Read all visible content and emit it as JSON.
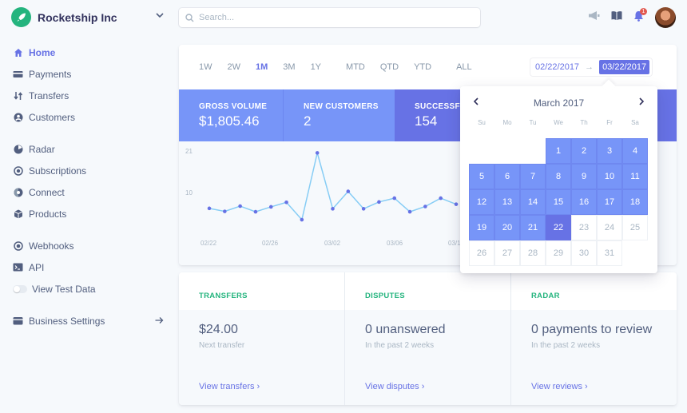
{
  "brand": {
    "name": "Rocketship Inc"
  },
  "search": {
    "placeholder": "Search..."
  },
  "notifications": {
    "count": "1"
  },
  "sidebar": {
    "items": [
      {
        "label": "Home",
        "icon": "home-icon",
        "active": true
      },
      {
        "label": "Payments",
        "icon": "payments-icon"
      },
      {
        "label": "Transfers",
        "icon": "transfers-icon"
      },
      {
        "label": "Customers",
        "icon": "customers-icon"
      },
      {
        "label": "Radar",
        "icon": "radar-icon"
      },
      {
        "label": "Subscriptions",
        "icon": "subscriptions-icon"
      },
      {
        "label": "Connect",
        "icon": "connect-icon"
      },
      {
        "label": "Products",
        "icon": "products-icon"
      },
      {
        "label": "Webhooks",
        "icon": "webhooks-icon"
      },
      {
        "label": "API",
        "icon": "api-icon"
      },
      {
        "label": "View Test Data",
        "icon": "toggle"
      },
      {
        "label": "Business Settings",
        "icon": "settings-icon"
      }
    ]
  },
  "ranges": [
    "1W",
    "2W",
    "1M",
    "3M",
    "1Y",
    "MTD",
    "QTD",
    "YTD",
    "ALL"
  ],
  "selected_range": "1M",
  "date_range": {
    "start": "02/22/2017",
    "end": "03/22/2017",
    "arrow": "→"
  },
  "metrics": [
    {
      "label": "GROSS VOLUME",
      "value": "$1,805.46"
    },
    {
      "label": "NEW CUSTOMERS",
      "value": "2"
    },
    {
      "label": "SUCCESSFUL",
      "value": "154"
    }
  ],
  "chart_data": {
    "type": "line",
    "x": [
      "02/22",
      "02/23",
      "02/24",
      "02/25",
      "02/26",
      "02/27",
      "02/28",
      "03/01",
      "03/02",
      "03/03",
      "03/04",
      "03/05",
      "03/06",
      "03/07",
      "03/08",
      "03/09",
      "03/10"
    ],
    "values": [
      5.8,
      5.0,
      6.4,
      4.9,
      6.2,
      7.4,
      2.8,
      20.5,
      5.7,
      10.3,
      5.7,
      7.5,
      8.5,
      4.9,
      6.3,
      8.5,
      6.9
    ],
    "y_ticks": [
      "21",
      "10"
    ],
    "x_ticks": [
      "02/22",
      "02/26",
      "03/02",
      "03/06",
      "03/1"
    ],
    "color": "#87cdf5",
    "point_color": "#6772e5"
  },
  "calendar": {
    "month": "March 2017",
    "dow": [
      "Su",
      "Mo",
      "Tu",
      "We",
      "Th",
      "Fr",
      "Sa"
    ],
    "days": [
      {
        "d": "1",
        "c": 3,
        "r": 0,
        "s": "in"
      },
      {
        "d": "2",
        "c": 4,
        "r": 0,
        "s": "in"
      },
      {
        "d": "3",
        "c": 5,
        "r": 0,
        "s": "in"
      },
      {
        "d": "4",
        "c": 6,
        "r": 0,
        "s": "in"
      },
      {
        "d": "5",
        "c": 0,
        "r": 1,
        "s": "in"
      },
      {
        "d": "6",
        "c": 1,
        "r": 1,
        "s": "in"
      },
      {
        "d": "7",
        "c": 2,
        "r": 1,
        "s": "in"
      },
      {
        "d": "8",
        "c": 3,
        "r": 1,
        "s": "in"
      },
      {
        "d": "9",
        "c": 4,
        "r": 1,
        "s": "in"
      },
      {
        "d": "10",
        "c": 5,
        "r": 1,
        "s": "in"
      },
      {
        "d": "11",
        "c": 6,
        "r": 1,
        "s": "in"
      },
      {
        "d": "12",
        "c": 0,
        "r": 2,
        "s": "in"
      },
      {
        "d": "13",
        "c": 1,
        "r": 2,
        "s": "in"
      },
      {
        "d": "14",
        "c": 2,
        "r": 2,
        "s": "in"
      },
      {
        "d": "15",
        "c": 3,
        "r": 2,
        "s": "in"
      },
      {
        "d": "16",
        "c": 4,
        "r": 2,
        "s": "in"
      },
      {
        "d": "17",
        "c": 5,
        "r": 2,
        "s": "in"
      },
      {
        "d": "18",
        "c": 6,
        "r": 2,
        "s": "in"
      },
      {
        "d": "19",
        "c": 0,
        "r": 3,
        "s": "in"
      },
      {
        "d": "20",
        "c": 1,
        "r": 3,
        "s": "in"
      },
      {
        "d": "21",
        "c": 2,
        "r": 3,
        "s": "in"
      },
      {
        "d": "22",
        "c": 3,
        "r": 3,
        "s": "today"
      },
      {
        "d": "23",
        "c": 4,
        "r": 3,
        "s": "out"
      },
      {
        "d": "24",
        "c": 5,
        "r": 3,
        "s": "out"
      },
      {
        "d": "25",
        "c": 6,
        "r": 3,
        "s": "out"
      },
      {
        "d": "26",
        "c": 0,
        "r": 4,
        "s": "out"
      },
      {
        "d": "27",
        "c": 1,
        "r": 4,
        "s": "out"
      },
      {
        "d": "28",
        "c": 2,
        "r": 4,
        "s": "out"
      },
      {
        "d": "29",
        "c": 3,
        "r": 4,
        "s": "out"
      },
      {
        "d": "30",
        "c": 4,
        "r": 4,
        "s": "out"
      },
      {
        "d": "31",
        "c": 5,
        "r": 4,
        "s": "out"
      }
    ]
  },
  "summary": {
    "transfers": {
      "title": "TRANSFERS",
      "value": "$24.00",
      "sub": "Next transfer",
      "link": "View transfers ›"
    },
    "disputes": {
      "title": "DISPUTES",
      "value": "0 unanswered",
      "sub": "In the past 2 weeks",
      "link": "View disputes ›"
    },
    "radar": {
      "title": "RADAR",
      "value": "0 payments to review",
      "sub": "In the past 2 weeks",
      "link": "View reviews ›"
    }
  },
  "colors": {
    "accent": "#6772e5",
    "metric": "#7795f8",
    "green": "#24b47e"
  }
}
